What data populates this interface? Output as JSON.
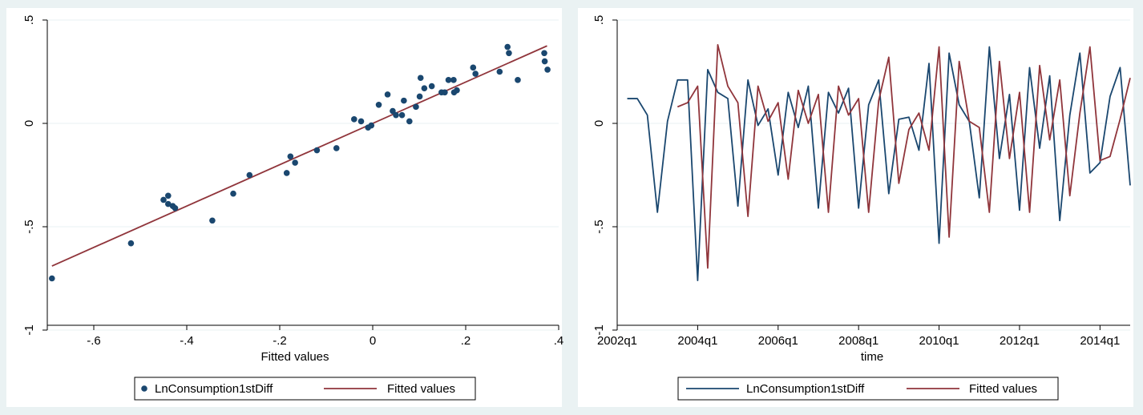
{
  "chart_data": [
    {
      "type": "scatter",
      "xlabel": "Fitted values",
      "ylabel": "",
      "xlim": [
        -0.7,
        0.4
      ],
      "ylim": [
        -1,
        0.5
      ],
      "xticks": [
        -0.6,
        -0.4,
        -0.2,
        0,
        0.2,
        0.4
      ],
      "xtick_labels": [
        "-.6",
        "-.4",
        "-.2",
        "0",
        ".2",
        ".4"
      ],
      "yticks": [
        -1,
        -0.5,
        0,
        0.5
      ],
      "ytick_labels": [
        "-1",
        "-.5",
        "0",
        ".5"
      ],
      "grid": true,
      "legend_position": "bottom",
      "series": [
        {
          "name": "LnConsumption1stDiff",
          "kind": "scatter",
          "color": "#1a476f",
          "points": [
            [
              -0.69,
              -0.75
            ],
            [
              -0.52,
              -0.58
            ],
            [
              -0.45,
              -0.37
            ],
            [
              -0.44,
              -0.35
            ],
            [
              -0.44,
              -0.39
            ],
            [
              -0.43,
              -0.4
            ],
            [
              -0.425,
              -0.41
            ],
            [
              -0.345,
              -0.47
            ],
            [
              -0.3,
              -0.34
            ],
            [
              -0.265,
              -0.25
            ],
            [
              -0.185,
              -0.24
            ],
            [
              -0.177,
              -0.16
            ],
            [
              -0.167,
              -0.19
            ],
            [
              -0.12,
              -0.13
            ],
            [
              -0.078,
              -0.12
            ],
            [
              -0.04,
              0.02
            ],
            [
              -0.025,
              0.01
            ],
            [
              -0.01,
              -0.02
            ],
            [
              -0.003,
              -0.01
            ],
            [
              0.013,
              0.09
            ],
            [
              0.032,
              0.14
            ],
            [
              0.043,
              0.06
            ],
            [
              0.05,
              0.04
            ],
            [
              0.063,
              0.04
            ],
            [
              0.067,
              0.11
            ],
            [
              0.079,
              0.01
            ],
            [
              0.093,
              0.08
            ],
            [
              0.101,
              0.13
            ],
            [
              0.103,
              0.22
            ],
            [
              0.111,
              0.17
            ],
            [
              0.127,
              0.18
            ],
            [
              0.148,
              0.15
            ],
            [
              0.155,
              0.15
            ],
            [
              0.163,
              0.21
            ],
            [
              0.174,
              0.21
            ],
            [
              0.175,
              0.15
            ],
            [
              0.181,
              0.16
            ],
            [
              0.216,
              0.27
            ],
            [
              0.221,
              0.24
            ],
            [
              0.273,
              0.25
            ],
            [
              0.29,
              0.37
            ],
            [
              0.293,
              0.34
            ],
            [
              0.312,
              0.21
            ],
            [
              0.369,
              0.34
            ],
            [
              0.37,
              0.3
            ],
            [
              0.376,
              0.26
            ]
          ]
        },
        {
          "name": "Fitted values",
          "kind": "line",
          "color": "#90353b",
          "points": [
            [
              -0.69,
              -0.69
            ],
            [
              0.375,
              0.375
            ]
          ]
        }
      ]
    },
    {
      "type": "line",
      "xlabel": "time",
      "ylabel": "",
      "xlim": [
        2002.0,
        2014.75
      ],
      "ylim": [
        -1,
        0.5
      ],
      "xticks": [
        2002.0,
        2004.0,
        2006.0,
        2008.0,
        2010.0,
        2012.0,
        2014.0
      ],
      "xtick_labels": [
        "2002q1",
        "2004q1",
        "2006q1",
        "2008q1",
        "2010q1",
        "2012q1",
        "2014q1"
      ],
      "yticks": [
        -1,
        -0.5,
        0,
        0.5
      ],
      "ytick_labels": [
        "-1",
        "-.5",
        "0",
        ".5"
      ],
      "grid": true,
      "legend_position": "bottom",
      "series": [
        {
          "name": "LnConsumption1stDiff",
          "color": "#1a476f",
          "x_start": 2002.25,
          "x_step": 0.25,
          "values": [
            0.12,
            0.12,
            0.04,
            -0.43,
            0.01,
            0.21,
            0.21,
            -0.76,
            0.26,
            0.15,
            0.12,
            -0.4,
            0.21,
            -0.01,
            0.07,
            -0.25,
            0.15,
            -0.02,
            0.18,
            -0.41,
            0.15,
            0.05,
            0.17,
            -0.41,
            0.09,
            0.21,
            -0.34,
            0.02,
            0.03,
            -0.13,
            0.29,
            -0.58,
            0.34,
            0.09,
            0.01,
            -0.36,
            0.37,
            -0.17,
            0.14,
            -0.42,
            0.27,
            -0.12,
            0.23,
            -0.47,
            0.04,
            0.34,
            -0.24,
            -0.19,
            0.13,
            0.27,
            -0.3
          ]
        },
        {
          "name": "Fitted values",
          "color": "#90353b",
          "x_start": 2003.5,
          "x_step": 0.25,
          "values": [
            0.08,
            0.1,
            0.18,
            -0.7,
            0.38,
            0.18,
            0.1,
            -0.45,
            0.18,
            0.01,
            0.1,
            -0.27,
            0.16,
            0.0,
            0.14,
            -0.43,
            0.18,
            0.04,
            0.12,
            -0.43,
            0.11,
            0.32,
            -0.29,
            -0.03,
            0.05,
            -0.13,
            0.37,
            -0.55,
            0.3,
            0.01,
            -0.02,
            -0.43,
            0.3,
            -0.17,
            0.15,
            -0.43,
            0.28,
            -0.08,
            0.21,
            -0.35,
            0.05,
            0.37,
            -0.18,
            -0.16,
            0.02,
            0.22
          ]
        }
      ]
    }
  ]
}
